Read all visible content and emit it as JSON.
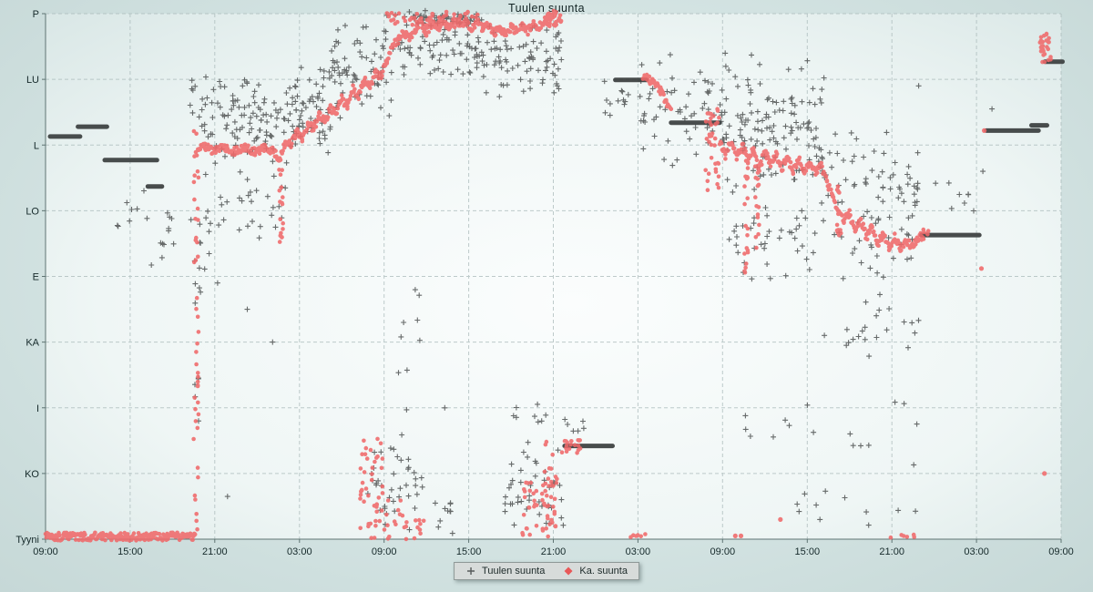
{
  "title": "Tuulen suunta",
  "legend": {
    "series1_label": "Tuulen suunta",
    "series2_label": "Ka. suunta"
  },
  "chart_data": {
    "type": "scatter",
    "title": "Tuulen suunta",
    "xlabel": "",
    "ylabel": "",
    "grid": "dashed",
    "legend_position": "bottom-center",
    "units": {
      "x": "hours since first 09:00 tick (0-72, ticks every 6 h)",
      "y": "compass index 0=Tyyni,1=KO,2=I,3=KA,4=E,5=LO,6=L,7=LU,8=P",
      "cluster_format": "[h_start,h_end,dir_start,dir_end,count]",
      "dense_segment_format": "[h_start,h_end,dir]",
      "path_point_format": "[h,dir]"
    },
    "x_axis": {
      "tick_labels": [
        "09:00",
        "15:00",
        "21:00",
        "03:00",
        "09:00",
        "15:00",
        "21:00",
        "03:00",
        "09:00",
        "15:00",
        "21:00",
        "03:00",
        "09:00"
      ],
      "hours_range": [
        0,
        72
      ],
      "tick_interval_hours": 6
    },
    "y_axis": {
      "categories_bottom_to_top": [
        "Tyyni",
        "KO",
        "I",
        "KA",
        "E",
        "LO",
        "L",
        "LU",
        "P"
      ]
    },
    "colors": {
      "wind_plus": "#565a5a",
      "avg_dot": "#f0696a",
      "dense_line": "#3e4242",
      "axis": "#5f7473",
      "gridline": "#a9bab9",
      "tick_text": "#15292a"
    },
    "series": [
      {
        "name": "Tuulen suunta",
        "marker": "plus",
        "clusters": [
          [
            4.4,
            9.0,
            4.6,
            5.5,
            10
          ],
          [
            7.5,
            12.5,
            3.8,
            5.2,
            16
          ],
          [
            10.2,
            17.4,
            5.4,
            7.35,
            120
          ],
          [
            11.5,
            17.4,
            4.55,
            5.4,
            26
          ],
          [
            17.4,
            20.2,
            5.8,
            7.25,
            60
          ],
          [
            20.2,
            24.6,
            6.35,
            7.9,
            70
          ],
          [
            24.6,
            31.0,
            6.9,
            8.03,
            80
          ],
          [
            31.0,
            36.6,
            6.5,
            7.95,
            80
          ],
          [
            23.9,
            31.0,
            7.8,
            8.05,
            50
          ],
          [
            22.3,
            26.8,
            0.0,
            1.7,
            40
          ],
          [
            27.6,
            29.2,
            0.0,
            0.8,
            10
          ],
          [
            32.5,
            36.8,
            0.0,
            1.8,
            45
          ],
          [
            33.0,
            35.6,
            1.55,
            2.15,
            8
          ],
          [
            24.3,
            27.2,
            1.8,
            4.2,
            7
          ],
          [
            39.6,
            41.5,
            6.4,
            7.1,
            12
          ],
          [
            42.0,
            47.8,
            5.6,
            7.45,
            55
          ],
          [
            47.8,
            55.2,
            5.2,
            7.45,
            140
          ],
          [
            47.8,
            55.2,
            3.9,
            5.2,
            40
          ],
          [
            55.0,
            62.0,
            3.8,
            6.6,
            90
          ],
          [
            55.0,
            62.0,
            2.55,
            3.8,
            22
          ],
          [
            49.0,
            62.0,
            0.9,
            2.55,
            16
          ],
          [
            52.0,
            62.0,
            0.05,
            0.9,
            10
          ],
          [
            10.4,
            11.1,
            0.3,
            5.5,
            12
          ],
          [
            36.8,
            39.5,
            1.5,
            1.95,
            6
          ],
          [
            62.5,
            66.0,
            4.9,
            5.6,
            8
          ]
        ],
        "singles": [
          [
            12.9,
            0.65
          ],
          [
            25.2,
            3.08
          ],
          [
            25.6,
            1.97
          ],
          [
            12.2,
            3.9
          ],
          [
            14.3,
            3.5
          ],
          [
            16.1,
            3.0
          ],
          [
            28.3,
            2.0
          ],
          [
            61.9,
            6.9
          ],
          [
            67.1,
            6.55
          ],
          [
            66.45,
            5.6
          ],
          [
            54.9,
            0.3
          ]
        ],
        "dense_segments": [
          [
            0.32,
            2.45,
            6.13
          ],
          [
            2.3,
            4.35,
            6.28
          ],
          [
            4.2,
            7.9,
            5.77
          ],
          [
            7.25,
            8.25,
            5.37
          ],
          [
            40.4,
            42.6,
            6.99
          ],
          [
            44.35,
            47.8,
            6.34
          ],
          [
            36.8,
            40.2,
            1.42
          ],
          [
            62.1,
            66.2,
            4.63
          ],
          [
            66.7,
            70.4,
            6.22
          ],
          [
            69.9,
            71.0,
            6.3
          ],
          [
            70.85,
            72.1,
            7.27
          ]
        ]
      },
      {
        "name": "Ka. suunta",
        "marker": "dot",
        "paths": [
          [
            [
              0.0,
              0.04
            ],
            [
              10.6,
              0.04
            ]
          ],
          [
            [
              10.8,
              5.92
            ],
            [
              11.3,
              5.98
            ],
            [
              12.0,
              5.9
            ],
            [
              12.7,
              5.97
            ],
            [
              13.4,
              5.9
            ],
            [
              14.1,
              5.96
            ],
            [
              14.8,
              5.9
            ],
            [
              15.5,
              5.95
            ],
            [
              16.2,
              5.9
            ],
            [
              16.6,
              5.78
            ],
            [
              17.0,
              6.05
            ],
            [
              17.4,
              6.0
            ],
            [
              17.8,
              6.2
            ],
            [
              18.2,
              6.1
            ],
            [
              18.6,
              6.3
            ],
            [
              19.0,
              6.25
            ],
            [
              19.4,
              6.45
            ],
            [
              19.8,
              6.35
            ],
            [
              20.2,
              6.55
            ],
            [
              20.6,
              6.5
            ],
            [
              21.0,
              6.7
            ],
            [
              21.4,
              6.6
            ],
            [
              21.8,
              6.85
            ],
            [
              22.2,
              6.75
            ],
            [
              22.6,
              7.0
            ],
            [
              23.0,
              6.9
            ],
            [
              23.4,
              7.1
            ],
            [
              23.8,
              7.05
            ],
            [
              24.2,
              7.3
            ],
            [
              24.6,
              7.5
            ],
            [
              25.0,
              7.6
            ],
            [
              25.4,
              7.72
            ],
            [
              25.8,
              7.62
            ],
            [
              26.2,
              7.76
            ],
            [
              26.6,
              7.86
            ],
            [
              27.0,
              7.72
            ],
            [
              27.4,
              7.85
            ],
            [
              27.8,
              7.76
            ],
            [
              28.2,
              7.9
            ],
            [
              28.6,
              7.8
            ],
            [
              29.0,
              7.9
            ],
            [
              29.4,
              7.8
            ],
            [
              29.8,
              7.88
            ],
            [
              30.2,
              7.78
            ],
            [
              30.6,
              7.88
            ],
            [
              31.0,
              7.76
            ],
            [
              31.4,
              7.82
            ],
            [
              31.8,
              7.7
            ],
            [
              32.2,
              7.78
            ],
            [
              32.6,
              7.68
            ],
            [
              33.0,
              7.8
            ],
            [
              33.4,
              7.72
            ],
            [
              33.8,
              7.82
            ],
            [
              34.2,
              7.74
            ],
            [
              34.6,
              7.85
            ],
            [
              35.0,
              7.8
            ],
            [
              35.4,
              7.9
            ],
            [
              35.8,
              7.96
            ],
            [
              36.2,
              8.0
            ]
          ],
          [
            [
              42.35,
              7.05
            ],
            [
              42.8,
              7.0
            ],
            [
              43.2,
              6.93
            ],
            [
              43.6,
              6.82
            ],
            [
              44.0,
              6.65
            ],
            [
              44.35,
              6.52
            ]
          ],
          [
            [
              47.8,
              6.05
            ],
            [
              48.2,
              5.85
            ],
            [
              48.6,
              6.05
            ],
            [
              49.0,
              5.8
            ],
            [
              49.4,
              6.0
            ],
            [
              49.8,
              5.75
            ],
            [
              50.2,
              5.95
            ],
            [
              50.6,
              5.65
            ],
            [
              51.0,
              5.9
            ],
            [
              51.4,
              5.7
            ],
            [
              51.8,
              5.85
            ],
            [
              52.2,
              5.65
            ],
            [
              52.6,
              5.8
            ],
            [
              53.0,
              5.62
            ],
            [
              53.4,
              5.78
            ],
            [
              53.8,
              5.6
            ],
            [
              54.2,
              5.72
            ],
            [
              54.6,
              5.6
            ],
            [
              55.0,
              5.68
            ],
            [
              55.4,
              5.45
            ],
            [
              55.8,
              5.2
            ],
            [
              56.2,
              5.0
            ],
            [
              56.6,
              4.85
            ],
            [
              57.0,
              4.95
            ],
            [
              57.4,
              4.7
            ],
            [
              57.8,
              4.85
            ],
            [
              58.2,
              4.6
            ],
            [
              58.6,
              4.75
            ],
            [
              59.0,
              4.5
            ],
            [
              59.4,
              4.65
            ],
            [
              59.8,
              4.45
            ],
            [
              60.2,
              4.6
            ],
            [
              60.6,
              4.42
            ],
            [
              61.0,
              4.55
            ],
            [
              61.4,
              4.45
            ],
            [
              61.8,
              4.55
            ],
            [
              62.1,
              4.62
            ]
          ]
        ],
        "clusters": [
          [
            10.5,
            10.85,
            0.1,
            6.3,
            45
          ],
          [
            16.55,
            16.85,
            4.5,
            5.8,
            18
          ],
          [
            23.9,
            31.0,
            7.78,
            8.04,
            70
          ],
          [
            35.4,
            36.6,
            7.8,
            8.03,
            25
          ],
          [
            46.75,
            47.75,
            5.3,
            6.6,
            35
          ],
          [
            49.55,
            49.8,
            4.0,
            5.8,
            20
          ],
          [
            50.3,
            50.6,
            4.4,
            5.7,
            15
          ],
          [
            56.1,
            56.4,
            4.55,
            5.4,
            12
          ],
          [
            22.3,
            23.9,
            0.0,
            1.55,
            45
          ],
          [
            23.9,
            25.6,
            0.0,
            0.6,
            16
          ],
          [
            26.1,
            26.9,
            0.0,
            0.35,
            8
          ],
          [
            33.8,
            34.9,
            0.0,
            0.9,
            22
          ],
          [
            35.2,
            36.3,
            0.0,
            1.5,
            40
          ],
          [
            36.6,
            38.1,
            1.3,
            1.52,
            18
          ],
          [
            70.5,
            71.35,
            7.25,
            7.75,
            28
          ],
          [
            62.05,
            62.6,
            4.55,
            4.72,
            8
          ],
          [
            41.3,
            42.6,
            0.0,
            0.08,
            6
          ],
          [
            59.8,
            61.6,
            0.0,
            0.08,
            6
          ]
        ],
        "singles": [
          [
            66.35,
            4.12
          ],
          [
            66.55,
            6.22
          ],
          [
            70.82,
            1.0
          ],
          [
            52.1,
            0.3
          ],
          [
            48.9,
            0.05
          ],
          [
            49.3,
            0.05
          ]
        ]
      }
    ]
  }
}
